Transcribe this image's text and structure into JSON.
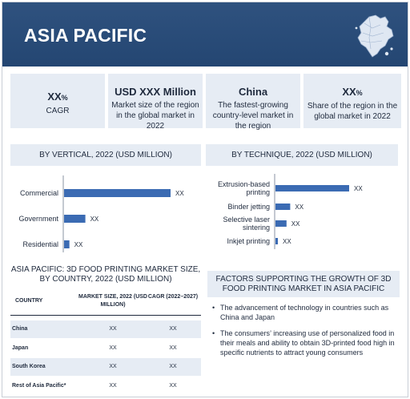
{
  "header": {
    "title": "ASIA PACIFIC",
    "map_icon": "asia-pacific-map-icon"
  },
  "stats": [
    {
      "value": "XX",
      "unit": "%",
      "label": "CAGR"
    },
    {
      "value": "USD XXX Million",
      "unit": "",
      "label": "Market size of the region in the global market in 2022"
    },
    {
      "value": "China",
      "unit": "",
      "label": "The fastest-growing country-level market in the region"
    },
    {
      "value": "XX",
      "unit": "%",
      "label": "Share of the region in the global market in 2022"
    }
  ],
  "chart_data": [
    {
      "type": "bar",
      "orientation": "horizontal",
      "title": "BY VERTICAL, 2022 (USD MILLION)",
      "categories": [
        "Commercial",
        "Government",
        "Residential"
      ],
      "values": [
        100,
        20,
        5
      ],
      "data_labels": [
        "XX",
        "XX",
        "XX"
      ],
      "color": "#3b6bb3"
    },
    {
      "type": "bar",
      "orientation": "horizontal",
      "title": "BY TECHNIQUE, 2022 (USD MILLION)",
      "categories": [
        "Extrusion-based printing",
        "Binder jetting",
        "Selective laser sintering",
        "Inkjet printing"
      ],
      "values": [
        100,
        20,
        15,
        3
      ],
      "data_labels": [
        "XX",
        "XX",
        "XX",
        "XX"
      ],
      "color": "#3b6bb3"
    }
  ],
  "table": {
    "title": "ASIA PACIFIC: 3D FOOD PRINTING MARKET SIZE, BY COUNTRY, 2022 (USD MILLION)",
    "headers": [
      "COUNTRY",
      "MARKET SIZE, 2022 (USD MILLION)",
      "CAGR (2022–2027)"
    ],
    "rows": [
      [
        "China",
        "XX",
        "XX"
      ],
      [
        "Japan",
        "XX",
        "XX"
      ],
      [
        "South Korea",
        "XX",
        "XX"
      ],
      [
        "Rest of Asia Pacific*",
        "XX",
        "XX"
      ]
    ]
  },
  "factors": {
    "title": "FACTORS SUPPORTING THE GROWTH OF 3D FOOD PRINTING MARKET IN ASIA PACIFIC",
    "items": [
      "The advancement of technology in countries such as China and Japan",
      "The consumers’ increasing use of personalized food in their meals and ability to obtain 3D-printed food high in specific nutrients to attract young consumers"
    ]
  }
}
